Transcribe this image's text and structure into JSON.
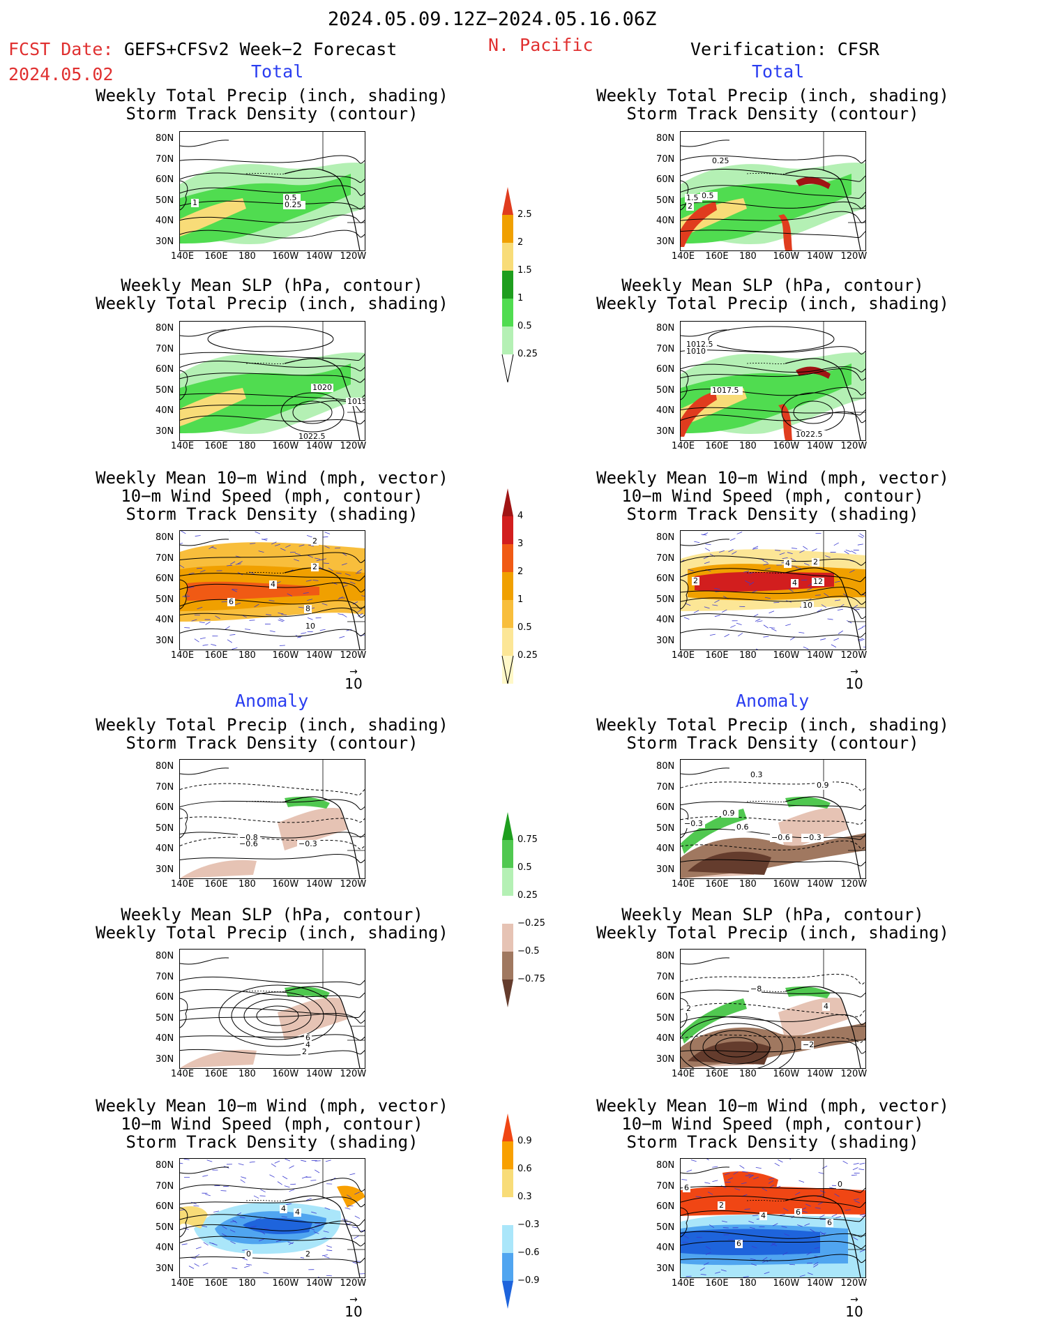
{
  "header": {
    "period": "2024.05.09.12Z−2024.05.16.06Z",
    "fcst_label": "FCST Date:",
    "fcst_model": "GEFS+CFSv2 Week−2 Forecast",
    "fcst_date": "2024.05.02",
    "region": "N. Pacific",
    "verification": "Verification: CFSR"
  },
  "section_labels": {
    "total": "Total",
    "anomaly": "Anomaly"
  },
  "axes": {
    "lat_ticks": [
      "80N",
      "70N",
      "60N",
      "50N",
      "40N",
      "30N"
    ],
    "lon_ticks": [
      "140E",
      "160E",
      "180",
      "160W",
      "140W",
      "120W"
    ]
  },
  "vector_ref": "10",
  "panels": [
    {
      "title": "Weekly Total Precip (inch, shading)\nStorm Track Density (contour)",
      "labels": [
        "1",
        "0.5",
        "0.25"
      ]
    },
    {
      "title": "Weekly Total Precip (inch, shading)\nStorm Track Density (contour)",
      "labels": [
        "0.5",
        "1.5",
        "2",
        "0.25"
      ]
    },
    {
      "title": "Weekly Mean SLP (hPa, contour)\nWeekly Total Precip (inch, shading)",
      "labels": [
        "1020",
        "1015",
        "1022.5"
      ]
    },
    {
      "title": "Weekly Mean SLP (hPa, contour)\nWeekly Total Precip (inch, shading)",
      "labels": [
        "1012.5",
        "1010",
        "1017.5",
        "1022.5"
      ]
    },
    {
      "title": "Weekly Mean 10−m Wind (mph, vector)\n10−m Wind Speed (mph, contour)\nStorm Track Density (shading)",
      "labels": [
        "2",
        "2",
        "4",
        "6",
        "8",
        "10"
      ]
    },
    {
      "title": "Weekly Mean 10−m Wind (mph, vector)\n10−m Wind Speed (mph, contour)\nStorm Track Density (shading)",
      "labels": [
        "2",
        "4",
        "4",
        "2",
        "12",
        "10"
      ]
    },
    {
      "title": "Weekly Total Precip (inch, shading)\nStorm Track Density (contour)",
      "labels": [
        "−0.8",
        "−0.6",
        "−0.3"
      ]
    },
    {
      "title": "Weekly Total Precip (inch, shading)\nStorm Track Density (contour)",
      "labels": [
        "−0.3",
        "0.9",
        "0.3",
        "0.9",
        "0.6",
        "−0.6",
        "−0.3"
      ]
    },
    {
      "title": "Weekly Mean SLP (hPa, contour)\nWeekly Total Precip (inch, shading)",
      "labels": [
        "6",
        "4",
        "2"
      ]
    },
    {
      "title": "Weekly Mean SLP (hPa, contour)\nWeekly Total Precip (inch, shading)",
      "labels": [
        "−8",
        "2",
        "−2",
        "4"
      ]
    },
    {
      "title": "Weekly Mean 10−m Wind (mph, vector)\n10−m Wind Speed (mph, contour)\nStorm Track Density (shading)",
      "labels": [
        "4",
        "4",
        "0",
        "2"
      ]
    },
    {
      "title": "Weekly Mean 10−m Wind (mph, vector)\n10−m Wind Speed (mph, contour)\nStorm Track Density (shading)",
      "labels": [
        "6",
        "2",
        "4",
        "6",
        "6",
        "6",
        "0"
      ]
    }
  ],
  "colorbars": [
    {
      "labels": [
        "2.5",
        "2",
        "1.5",
        "1",
        "0.5",
        "0.25"
      ],
      "colors": [
        "#f0a000",
        "#f8dc78",
        "#1e9e1e",
        "#50dc50",
        "#b4f0b4"
      ],
      "top": "#e03c1e"
    },
    {
      "labels": [
        "4",
        "3",
        "2",
        "1",
        "0.5",
        "0.25"
      ],
      "colors": [
        "#d21e1e",
        "#f05a14",
        "#f0a000",
        "#f8be3c",
        "#fce696",
        "#fff8c8"
      ],
      "top": "#a01414"
    },
    {
      "labels": [
        "0.75",
        "0.5",
        "0.25",
        "−0.25",
        "−0.5",
        "−0.75"
      ],
      "colors": [
        "#50c850",
        "#b4f0b4",
        "#ffffff",
        "#e6c3b4",
        "#a07860"
      ],
      "top": "#1e9e1e",
      "bottom": "#643c2d"
    },
    {
      "labels": [
        "0.9",
        "0.6",
        "0.3",
        "−0.3",
        "−0.6",
        "−0.9"
      ],
      "colors": [
        "#f8a000",
        "#f8dc78",
        "#ffffff",
        "#aae6fa",
        "#50a5f0"
      ],
      "top": "#f04614",
      "bottom": "#1e64dc"
    }
  ]
}
